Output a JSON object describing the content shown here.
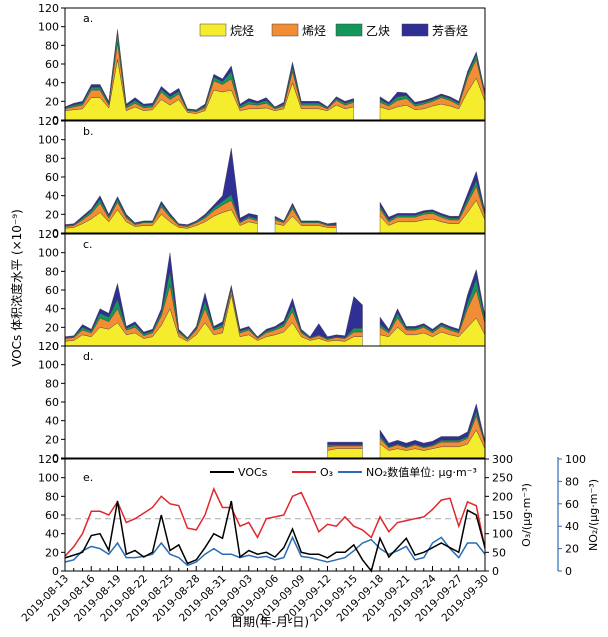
{
  "chart_data": {
    "type": "area",
    "title": "",
    "x_axis": {
      "label": "日期(年-月-日)",
      "start_day": 0,
      "end_day": 48,
      "tick_labels": [
        "2019-08-13",
        "2019-08-16",
        "2019-08-19",
        "2019-08-22",
        "2019-08-25",
        "2019-08-28",
        "2019-08-31",
        "2019-09-03",
        "2019-09-06",
        "2019-09-09",
        "2019-09-12",
        "2019-09-15",
        "2019-09-18",
        "2019-09-21",
        "2019-09-24",
        "2019-09-27",
        "2019-09-30"
      ]
    },
    "y_label": "VOCs 体积浓度水平 (×10⁻⁹)",
    "panel_ylim": [
      0,
      120
    ],
    "panel_ticks": [
      "0",
      "20",
      "40",
      "60",
      "80",
      "100",
      "120"
    ],
    "legend": {
      "entries": [
        "烷烃",
        "烯烃",
        "乙炔",
        "芳香烃"
      ],
      "colors": [
        "#f5ec2e",
        "#f28d35",
        "#14975a",
        "#2f2f96"
      ]
    },
    "panels": [
      {
        "tag": "a.",
        "days": [
          0,
          1,
          2,
          3,
          4,
          5,
          6,
          7,
          8,
          9,
          10,
          11,
          12,
          13,
          14,
          15,
          16,
          17,
          18,
          19,
          20,
          21,
          22,
          23,
          24,
          25,
          26,
          27,
          28,
          29,
          30,
          31,
          32,
          33,
          34,
          35,
          36,
          37,
          38,
          39,
          40,
          41,
          42,
          43,
          44,
          45,
          46,
          47,
          48
        ],
        "alkane": [
          10,
          11,
          12,
          24,
          24,
          13,
          65,
          10,
          14,
          10,
          11,
          22,
          16,
          22,
          8,
          7,
          10,
          32,
          30,
          32,
          10,
          12,
          12,
          13,
          10,
          12,
          40,
          12,
          12,
          12,
          10,
          16,
          12,
          14,
          null,
          null,
          14,
          11,
          14,
          16,
          11,
          12,
          15,
          17,
          15,
          12,
          30,
          45,
          20
        ],
        "alkene": [
          2,
          3,
          4,
          8,
          8,
          3,
          18,
          3,
          4,
          3,
          3,
          8,
          6,
          6,
          2,
          2,
          3,
          10,
          8,
          12,
          3,
          5,
          4,
          5,
          2,
          3,
          12,
          4,
          4,
          4,
          2,
          5,
          4,
          5,
          null,
          null,
          5,
          4,
          7,
          7,
          4,
          5,
          5,
          7,
          6,
          4,
          15,
          20,
          6
        ],
        "alkyne": [
          1,
          2,
          2,
          3,
          3,
          2,
          10,
          2,
          3,
          2,
          2,
          3,
          3,
          3,
          1,
          1,
          2,
          4,
          3,
          8,
          2,
          3,
          2,
          3,
          1,
          2,
          5,
          2,
          2,
          2,
          1,
          2,
          2,
          2,
          null,
          null,
          3,
          2,
          4,
          3,
          2,
          2,
          2,
          2,
          2,
          2,
          4,
          5,
          2
        ],
        "aromatic": [
          1,
          2,
          2,
          3,
          3,
          2,
          4,
          2,
          3,
          2,
          2,
          3,
          3,
          3,
          1,
          1,
          2,
          3,
          3,
          6,
          2,
          3,
          2,
          3,
          1,
          2,
          5,
          2,
          2,
          2,
          1,
          2,
          2,
          2,
          null,
          null,
          3,
          2,
          5,
          3,
          2,
          2,
          2,
          2,
          2,
          2,
          3,
          3,
          2
        ]
      },
      {
        "tag": "b.",
        "days": [
          0,
          1,
          2,
          3,
          4,
          5,
          6,
          7,
          8,
          9,
          10,
          11,
          12,
          13,
          14,
          15,
          16,
          17,
          18,
          19,
          20,
          21,
          22,
          23,
          24,
          25,
          26,
          27,
          28,
          29,
          30,
          31,
          32,
          33,
          34,
          35,
          36,
          37,
          38,
          39,
          40,
          41,
          42,
          43,
          44,
          45,
          46,
          47,
          48
        ],
        "alkane": [
          5,
          6,
          10,
          15,
          22,
          12,
          25,
          12,
          7,
          8,
          8,
          20,
          12,
          6,
          5,
          8,
          12,
          18,
          22,
          25,
          8,
          12,
          10,
          null,
          10,
          8,
          18,
          8,
          8,
          8,
          6,
          6,
          null,
          null,
          null,
          null,
          18,
          8,
          12,
          12,
          12,
          14,
          15,
          12,
          10,
          10,
          22,
          35,
          14
        ],
        "alkene": [
          2,
          2,
          4,
          6,
          10,
          4,
          8,
          4,
          2,
          3,
          3,
          8,
          5,
          2,
          2,
          3,
          4,
          6,
          8,
          10,
          3,
          4,
          3,
          null,
          4,
          3,
          8,
          3,
          3,
          3,
          2,
          2,
          null,
          null,
          null,
          null,
          8,
          4,
          5,
          5,
          5,
          6,
          6,
          5,
          4,
          4,
          10,
          15,
          5
        ],
        "alkyne": [
          1,
          1,
          2,
          3,
          4,
          2,
          3,
          2,
          1,
          1,
          1,
          3,
          2,
          1,
          1,
          1,
          2,
          3,
          4,
          6,
          1,
          2,
          2,
          null,
          2,
          1,
          3,
          1,
          1,
          1,
          1,
          1,
          null,
          null,
          null,
          null,
          3,
          2,
          2,
          2,
          2,
          2,
          2,
          2,
          2,
          2,
          4,
          6,
          2
        ],
        "aromatic": [
          1,
          1,
          2,
          2,
          4,
          2,
          3,
          2,
          1,
          1,
          1,
          3,
          2,
          1,
          1,
          1,
          2,
          3,
          6,
          50,
          4,
          3,
          4,
          null,
          2,
          1,
          3,
          1,
          1,
          1,
          1,
          2,
          null,
          null,
          null,
          null,
          4,
          3,
          2,
          2,
          2,
          2,
          2,
          2,
          2,
          2,
          6,
          10,
          2
        ]
      },
      {
        "tag": "c.",
        "days": [
          0,
          1,
          2,
          3,
          4,
          5,
          6,
          7,
          8,
          9,
          10,
          11,
          12,
          13,
          14,
          15,
          16,
          17,
          18,
          19,
          20,
          21,
          22,
          23,
          24,
          25,
          26,
          27,
          28,
          29,
          30,
          31,
          32,
          33,
          34,
          35,
          36,
          37,
          38,
          39,
          40,
          41,
          42,
          43,
          44,
          45,
          46,
          47,
          48
        ],
        "alkane": [
          5,
          6,
          12,
          10,
          20,
          18,
          25,
          12,
          14,
          8,
          10,
          22,
          40,
          10,
          5,
          12,
          25,
          12,
          14,
          55,
          10,
          12,
          6,
          10,
          12,
          15,
          25,
          10,
          6,
          8,
          5,
          6,
          5,
          10,
          10,
          null,
          12,
          10,
          20,
          12,
          12,
          14,
          10,
          15,
          12,
          10,
          20,
          30,
          12
        ],
        "alkene": [
          3,
          3,
          5,
          4,
          10,
          8,
          15,
          5,
          6,
          3,
          4,
          10,
          25,
          4,
          2,
          5,
          15,
          5,
          6,
          5,
          4,
          5,
          2,
          4,
          5,
          6,
          12,
          4,
          2,
          3,
          2,
          3,
          3,
          5,
          5,
          null,
          8,
          4,
          10,
          5,
          5,
          6,
          4,
          6,
          5,
          4,
          20,
          30,
          12
        ],
        "alkyne": [
          1,
          1,
          3,
          2,
          5,
          5,
          10,
          2,
          3,
          2,
          2,
          4,
          15,
          2,
          1,
          2,
          8,
          2,
          3,
          2,
          2,
          2,
          1,
          2,
          2,
          3,
          6,
          2,
          1,
          1,
          1,
          1,
          1,
          4,
          4,
          null,
          3,
          2,
          5,
          2,
          2,
          2,
          2,
          2,
          2,
          2,
          6,
          12,
          4
        ],
        "aromatic": [
          1,
          1,
          3,
          2,
          5,
          4,
          17,
          2,
          3,
          2,
          2,
          4,
          20,
          2,
          1,
          2,
          9,
          2,
          3,
          3,
          2,
          2,
          1,
          2,
          2,
          3,
          8,
          2,
          1,
          12,
          2,
          2,
          2,
          34,
          25,
          null,
          8,
          2,
          5,
          2,
          2,
          2,
          2,
          2,
          2,
          2,
          9,
          10,
          4
        ]
      },
      {
        "tag": "d.",
        "days": [
          30,
          31,
          32,
          33,
          34,
          35,
          36,
          37,
          38,
          39,
          40,
          41,
          42,
          43,
          44,
          45,
          46,
          47,
          48
        ],
        "alkane": [
          8,
          10,
          10,
          10,
          10,
          null,
          15,
          8,
          10,
          8,
          10,
          8,
          10,
          12,
          12,
          12,
          15,
          30,
          10
        ],
        "alkene": [
          4,
          3,
          3,
          3,
          3,
          null,
          6,
          3,
          4,
          3,
          4,
          3,
          3,
          5,
          5,
          5,
          6,
          15,
          5
        ],
        "alkyne": [
          2,
          1,
          1,
          1,
          1,
          null,
          3,
          1,
          1,
          1,
          1,
          1,
          1,
          2,
          2,
          2,
          2,
          5,
          1
        ],
        "aromatic": [
          3,
          3,
          3,
          3,
          3,
          null,
          6,
          4,
          4,
          4,
          4,
          4,
          4,
          4,
          4,
          4,
          5,
          8,
          2
        ]
      }
    ],
    "panel_e": {
      "tag": "e.",
      "left_ylim": [
        0,
        120
      ],
      "right_o3_ylim": [
        0,
        300
      ],
      "right_no2_ylim": [
        0,
        100
      ],
      "left_ticks": [
        "0",
        "20",
        "40",
        "60",
        "80",
        "100",
        "120"
      ],
      "o3_ticks": [
        "0",
        "50",
        "100",
        "150",
        "200",
        "250",
        "300"
      ],
      "no2_ticks": [
        "0",
        "20",
        "40",
        "60",
        "80",
        "100"
      ],
      "o3_axis_label": "O₃/(μg·m⁻³)",
      "no2_axis_label": "NO₂/(μg·m⁻³)",
      "reference_line_o3": 140,
      "legend": [
        "VOCs",
        "O₃",
        "NO₂数值单位: μg·m⁻³"
      ],
      "colors": {
        "vocs": "#000000",
        "o3": "#e2272c",
        "no2": "#2a6db5",
        "ref": "#aaaaaa"
      },
      "days": [
        0,
        1,
        2,
        3,
        4,
        5,
        6,
        7,
        8,
        9,
        10,
        11,
        12,
        13,
        14,
        15,
        16,
        17,
        18,
        19,
        20,
        21,
        22,
        23,
        24,
        25,
        26,
        27,
        28,
        29,
        30,
        31,
        32,
        33,
        34,
        35,
        36,
        37,
        38,
        39,
        40,
        41,
        42,
        43,
        44,
        45,
        46,
        47,
        48
      ],
      "vocs": [
        14,
        17,
        20,
        38,
        40,
        22,
        75,
        18,
        22,
        15,
        20,
        60,
        22,
        28,
        8,
        12,
        25,
        40,
        35,
        75,
        15,
        22,
        18,
        20,
        15,
        25,
        45,
        20,
        18,
        18,
        14,
        20,
        20,
        28,
        12,
        0,
        35,
        15,
        25,
        35,
        17,
        20,
        25,
        30,
        25,
        20,
        65,
        60,
        25
      ],
      "o3": [
        40,
        65,
        100,
        160,
        160,
        150,
        185,
        130,
        140,
        155,
        170,
        200,
        180,
        175,
        115,
        110,
        150,
        220,
        170,
        170,
        120,
        130,
        90,
        140,
        145,
        150,
        200,
        210,
        160,
        105,
        125,
        120,
        145,
        120,
        110,
        90,
        145,
        105,
        130,
        135,
        140,
        145,
        165,
        190,
        195,
        120,
        185,
        175,
        60
      ],
      "no2": [
        8,
        10,
        18,
        22,
        20,
        15,
        25,
        12,
        12,
        13,
        15,
        25,
        15,
        12,
        5,
        8,
        15,
        20,
        15,
        15,
        12,
        14,
        12,
        13,
        10,
        12,
        30,
        13,
        12,
        10,
        8,
        10,
        12,
        18,
        25,
        28,
        20,
        15,
        18,
        22,
        10,
        12,
        25,
        30,
        20,
        12,
        25,
        25,
        15
      ]
    }
  }
}
